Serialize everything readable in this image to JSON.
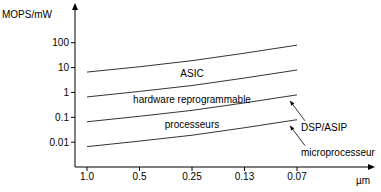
{
  "chart_data": {
    "type": "line",
    "y_label": "MOPS/mW",
    "x_label": "µm",
    "categories": [
      "1.0",
      "0.5",
      "0.25",
      "0.13",
      "0.07"
    ],
    "series": [
      {
        "color": "#000000",
        "values": [
          6.6,
          10.8,
          19,
          38,
          80
        ]
      },
      {
        "color": "#000000",
        "values": [
          0.66,
          1.1,
          1.9,
          3.8,
          8
        ]
      },
      {
        "name": "DSP/ASIP",
        "color": "#000000",
        "values": [
          0.066,
          0.11,
          0.19,
          0.38,
          0.8
        ]
      },
      {
        "name": "microprocesseur",
        "color": "#000000",
        "values": [
          0.0066,
          0.011,
          0.019,
          0.038,
          0.08
        ]
      }
    ],
    "log": "y",
    "ylim": [
      0.001,
      2500
    ],
    "yticks": [
      0.01,
      0.1,
      1,
      10,
      100
    ],
    "grid": false,
    "annotations": [
      {
        "text": "ASIC",
        "x": "0.25",
        "y": 5.8
      },
      {
        "text": "hardware reprogrammable",
        "x": "0.25",
        "y": 0.52
      },
      {
        "text": "processeurs",
        "x": "0.25",
        "y": 0.05
      }
    ]
  }
}
